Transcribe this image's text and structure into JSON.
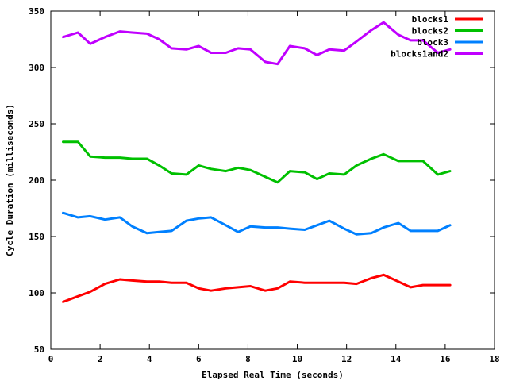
{
  "chart_data": {
    "type": "line",
    "title": "",
    "xlabel": "Elapsed Real Time (seconds)",
    "ylabel": "Cycle Duration (milliseconds)",
    "xlim": [
      0,
      18
    ],
    "ylim": [
      50,
      350
    ],
    "xticks": [
      0,
      2,
      4,
      6,
      8,
      10,
      12,
      14,
      16,
      18
    ],
    "yticks": [
      50,
      100,
      150,
      200,
      250,
      300,
      350
    ],
    "grid": false,
    "legend_position": "top-right",
    "x": [
      0.5,
      1.1,
      1.6,
      2.2,
      2.8,
      3.3,
      3.9,
      4.4,
      4.9,
      5.5,
      6.0,
      6.5,
      7.1,
      7.6,
      8.1,
      8.7,
      9.2,
      9.7,
      10.3,
      10.8,
      11.3,
      11.9,
      12.4,
      13.0,
      13.5,
      14.1,
      14.6,
      15.1,
      15.7,
      16.2
    ],
    "series": [
      {
        "name": "blocks1",
        "color": "#ff0000",
        "values": [
          92,
          97,
          101,
          108,
          112,
          111,
          110,
          110,
          109,
          109,
          104,
          102,
          104,
          105,
          106,
          102,
          104,
          110,
          109,
          109,
          109,
          109,
          108,
          113,
          116,
          110,
          105,
          107,
          107,
          107
        ]
      },
      {
        "name": "blocks2",
        "color": "#00c000",
        "values": [
          234,
          234,
          221,
          220,
          220,
          219,
          219,
          213,
          206,
          205,
          213,
          210,
          208,
          211,
          209,
          203,
          198,
          208,
          207,
          201,
          206,
          205,
          213,
          219,
          223,
          217,
          217,
          217,
          205,
          208
        ]
      },
      {
        "name": "block3",
        "color": "#0080ff",
        "values": [
          171,
          167,
          168,
          165,
          167,
          159,
          153,
          154,
          155,
          164,
          166,
          167,
          160,
          154,
          159,
          158,
          158,
          157,
          156,
          160,
          164,
          157,
          152,
          153,
          158,
          162,
          155,
          155,
          155,
          160
        ]
      },
      {
        "name": "blocks1and2",
        "color": "#c000ff",
        "values": [
          327,
          331,
          321,
          327,
          332,
          331,
          330,
          325,
          317,
          316,
          319,
          313,
          313,
          317,
          316,
          305,
          303,
          319,
          317,
          311,
          316,
          315,
          323,
          333,
          340,
          329,
          324,
          324,
          313,
          316
        ]
      }
    ]
  }
}
